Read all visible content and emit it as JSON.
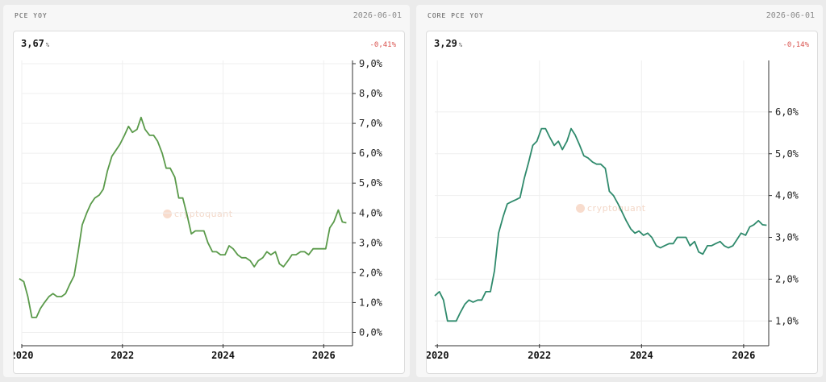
{
  "panels": [
    {
      "title": "PCE YOY",
      "date": "2026-06-01",
      "value": "3,67",
      "unit": "%",
      "change": "-0,41%",
      "watermark": "cryptoquant"
    },
    {
      "title": "CORE PCE YOY",
      "date": "2026-06-01",
      "value": "3,29",
      "unit": "%",
      "change": "-0,14%",
      "watermark": "cryptoquant"
    }
  ],
  "chart_data": [
    {
      "type": "line",
      "title": "",
      "xlabel": "",
      "ylabel": "",
      "xlim": [
        2020.0,
        2026.54
      ],
      "ylim": [
        -0.5,
        9.0
      ],
      "x_ticks": [
        2020,
        2022,
        2024,
        2026
      ],
      "x_tick_labels": [
        "2020",
        "2022",
        "2024",
        "2026"
      ],
      "y_ticks": [
        0,
        1,
        2,
        3,
        4,
        5,
        6,
        7,
        8,
        9
      ],
      "y_tick_labels": [
        "0,0%",
        "1,0%",
        "2,0%",
        "3,0%",
        "4,0%",
        "5,0%",
        "6,0%",
        "7,0%",
        "8,0%",
        "9,0%"
      ],
      "grid": true,
      "color": "#5a9a4a",
      "series": [
        {
          "x": [
            2019.95,
            2020.04,
            2020.12,
            2020.2,
            2020.29,
            2020.37,
            2020.45,
            2020.54,
            2020.62,
            2020.7,
            2020.79,
            2020.87,
            2020.95,
            2021.04,
            2021.12,
            2021.2,
            2021.29,
            2021.37,
            2021.45,
            2021.54,
            2021.62,
            2021.7,
            2021.79,
            2021.87,
            2021.95,
            2022.04,
            2022.12,
            2022.2,
            2022.29,
            2022.37,
            2022.45,
            2022.54,
            2022.62,
            2022.7,
            2022.79,
            2022.87,
            2022.95,
            2023.04,
            2023.12,
            2023.2,
            2023.29,
            2023.37,
            2023.45,
            2023.54,
            2023.62,
            2023.7,
            2023.79,
            2023.87,
            2023.95,
            2024.04,
            2024.12,
            2024.2,
            2024.29,
            2024.37,
            2024.45,
            2024.54,
            2024.62,
            2024.7,
            2024.79,
            2024.87,
            2024.95,
            2025.04,
            2025.12,
            2025.2,
            2025.29,
            2025.37,
            2025.45,
            2025.54,
            2025.62,
            2025.7,
            2025.79,
            2025.87,
            2025.95,
            2026.04,
            2026.12,
            2026.2,
            2026.29,
            2026.37,
            2026.45
          ],
          "values": [
            1.8,
            1.7,
            1.2,
            0.5,
            0.5,
            0.8,
            1.0,
            1.2,
            1.3,
            1.2,
            1.2,
            1.3,
            1.6,
            1.9,
            2.7,
            3.6,
            4.0,
            4.3,
            4.5,
            4.6,
            4.8,
            5.4,
            5.9,
            6.1,
            6.3,
            6.6,
            6.9,
            6.7,
            6.8,
            7.2,
            6.8,
            6.6,
            6.6,
            6.4,
            6.0,
            5.5,
            5.5,
            5.2,
            4.5,
            4.5,
            3.9,
            3.3,
            3.4,
            3.4,
            3.4,
            3.0,
            2.7,
            2.7,
            2.6,
            2.6,
            2.9,
            2.8,
            2.6,
            2.5,
            2.5,
            2.4,
            2.2,
            2.4,
            2.5,
            2.7,
            2.6,
            2.7,
            2.3,
            2.2,
            2.4,
            2.6,
            2.6,
            2.7,
            2.7,
            2.6,
            2.8,
            2.8,
            2.8,
            2.8,
            3.5,
            3.7,
            4.1,
            3.7,
            3.67
          ]
        }
      ]
    },
    {
      "type": "line",
      "title": "",
      "xlabel": "",
      "ylabel": "",
      "xlim": [
        2019.95,
        2026.46
      ],
      "ylim": [
        0.6,
        7.0
      ],
      "x_ticks": [
        2020,
        2022,
        2024,
        2026
      ],
      "x_tick_labels": [
        "2020",
        "2022",
        "2024",
        "2026"
      ],
      "y_ticks": [
        1,
        2,
        3,
        4,
        5,
        6
      ],
      "y_tick_labels": [
        "1,0%",
        "2,0%",
        "3,0%",
        "4,0%",
        "5,0%",
        "6,0%"
      ],
      "grid": true,
      "color": "#2f8a6c",
      "series": [
        {
          "x": [
            2019.95,
            2020.04,
            2020.12,
            2020.2,
            2020.29,
            2020.37,
            2020.45,
            2020.54,
            2020.62,
            2020.7,
            2020.79,
            2020.87,
            2020.95,
            2021.04,
            2021.12,
            2021.2,
            2021.29,
            2021.37,
            2021.45,
            2021.54,
            2021.62,
            2021.7,
            2021.79,
            2021.87,
            2021.95,
            2022.04,
            2022.12,
            2022.2,
            2022.29,
            2022.37,
            2022.45,
            2022.54,
            2022.62,
            2022.7,
            2022.79,
            2022.87,
            2022.95,
            2023.04,
            2023.12,
            2023.2,
            2023.29,
            2023.37,
            2023.45,
            2023.54,
            2023.62,
            2023.7,
            2023.79,
            2023.87,
            2023.95,
            2024.04,
            2024.12,
            2024.2,
            2024.29,
            2024.37,
            2024.45,
            2024.54,
            2024.62,
            2024.7,
            2024.79,
            2024.87,
            2024.95,
            2025.04,
            2025.12,
            2025.2,
            2025.29,
            2025.37,
            2025.45,
            2025.54,
            2025.62,
            2025.7,
            2025.79,
            2025.87,
            2025.95,
            2026.04,
            2026.12,
            2026.2,
            2026.29,
            2026.37,
            2026.45
          ],
          "values": [
            1.6,
            1.7,
            1.5,
            1.0,
            1.0,
            1.0,
            1.2,
            1.4,
            1.5,
            1.45,
            1.5,
            1.5,
            1.7,
            1.7,
            2.2,
            3.1,
            3.5,
            3.8,
            3.85,
            3.9,
            3.95,
            4.4,
            4.8,
            5.2,
            5.3,
            5.6,
            5.6,
            5.4,
            5.2,
            5.3,
            5.1,
            5.3,
            5.6,
            5.45,
            5.2,
            4.95,
            4.9,
            4.8,
            4.75,
            4.75,
            4.65,
            4.1,
            4.0,
            3.8,
            3.6,
            3.4,
            3.2,
            3.1,
            3.15,
            3.05,
            3.1,
            3.0,
            2.8,
            2.75,
            2.8,
            2.85,
            2.85,
            3.0,
            3.0,
            3.0,
            2.8,
            2.9,
            2.65,
            2.6,
            2.8,
            2.8,
            2.85,
            2.9,
            2.8,
            2.75,
            2.8,
            2.95,
            3.1,
            3.05,
            3.25,
            3.3,
            3.4,
            3.3,
            3.29
          ]
        }
      ]
    }
  ]
}
